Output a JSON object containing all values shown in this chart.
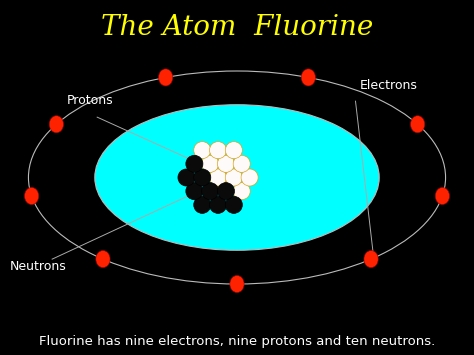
{
  "title": "The Atom  Fluorine",
  "title_color": "#FFFF00",
  "background_color": "#000000",
  "subtitle": "Fluorine has nine electrons, nine protons and ten neutrons.",
  "subtitle_color": "#FFFFFF",
  "subtitle_fontsize": 9.5,
  "title_fontsize": 20,
  "orbit_color": "#BBBBBB",
  "orbit_lw": 1.0,
  "cyan_ellipse_color": "#00FFFF",
  "electron_color": "#FF2200",
  "num_electrons": 9,
  "label_protons": "Protons",
  "label_electrons": "Electrons",
  "label_neutrons": "Neutrons",
  "label_color": "#FFFFFF",
  "label_fontsize": 9
}
